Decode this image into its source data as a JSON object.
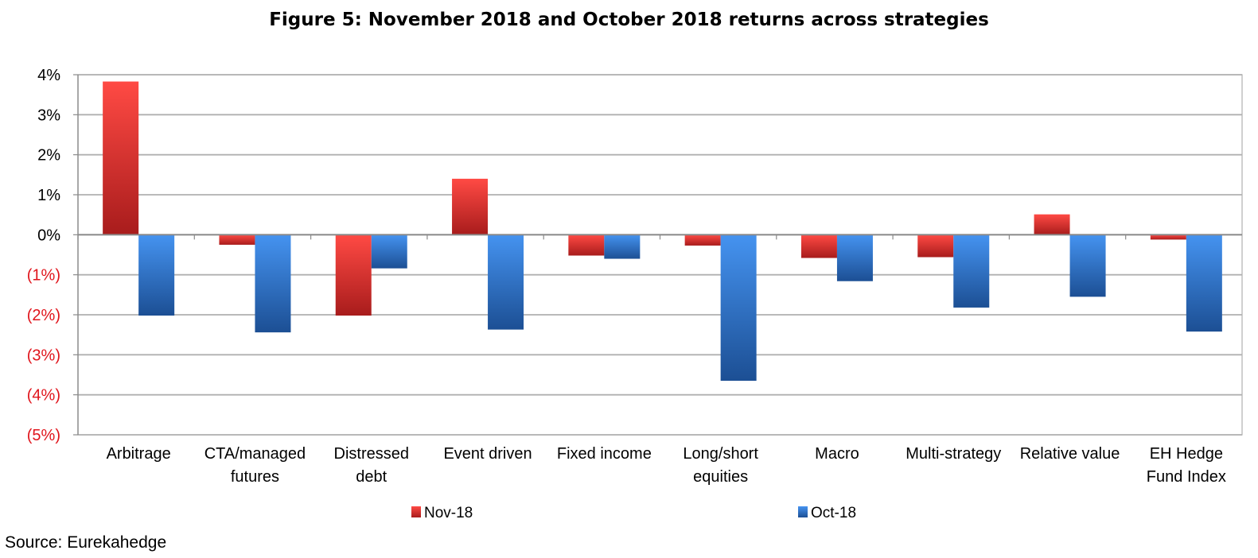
{
  "chart_data": {
    "type": "bar",
    "title": "Figure 5: November 2018 and October 2018 returns across strategies",
    "source": "Source: Eurekahedge",
    "categories": [
      [
        "Arbitrage"
      ],
      [
        "CTA/managed",
        "futures"
      ],
      [
        "Distressed",
        "debt"
      ],
      [
        "Event driven"
      ],
      [
        "Fixed income"
      ],
      [
        "Long/short",
        "equities"
      ],
      [
        "Macro"
      ],
      [
        "Multi-strategy"
      ],
      [
        "Relative value"
      ],
      [
        "EH Hedge",
        "Fund Index"
      ]
    ],
    "series": [
      {
        "name": "Nov-18",
        "values": [
          3.83,
          -0.25,
          -2.02,
          1.4,
          -0.52,
          -0.27,
          -0.58,
          -0.56,
          0.51,
          -0.12
        ]
      },
      {
        "name": "Oct-18",
        "values": [
          -2.02,
          -2.44,
          -0.84,
          -2.37,
          -0.6,
          -3.65,
          -1.16,
          -1.82,
          -1.55,
          -2.42
        ]
      }
    ],
    "ylim": [
      -5,
      4
    ],
    "yticks": [
      {
        "value": 4,
        "label": "4%"
      },
      {
        "value": 3,
        "label": "3%"
      },
      {
        "value": 2,
        "label": "2%"
      },
      {
        "value": 1,
        "label": "1%"
      },
      {
        "value": 0,
        "label": "0%"
      },
      {
        "value": -1,
        "label": "(1%)"
      },
      {
        "value": -2,
        "label": "(2%)"
      },
      {
        "value": -3,
        "label": "(3%)"
      },
      {
        "value": -4,
        "label": "(4%)"
      },
      {
        "value": -5,
        "label": "(5%)"
      }
    ],
    "grid": true,
    "legend_position": "bottom",
    "colors": {
      "nov_light": "#ff4a44",
      "nov_dark": "#a81c1c",
      "oct_light": "#4593f0",
      "oct_dark": "#1c4f94",
      "negative_tick": "#e0141b",
      "positive_tick": "#000000",
      "grid": "#b0b0b0",
      "axis": "#8a8a8a"
    }
  }
}
